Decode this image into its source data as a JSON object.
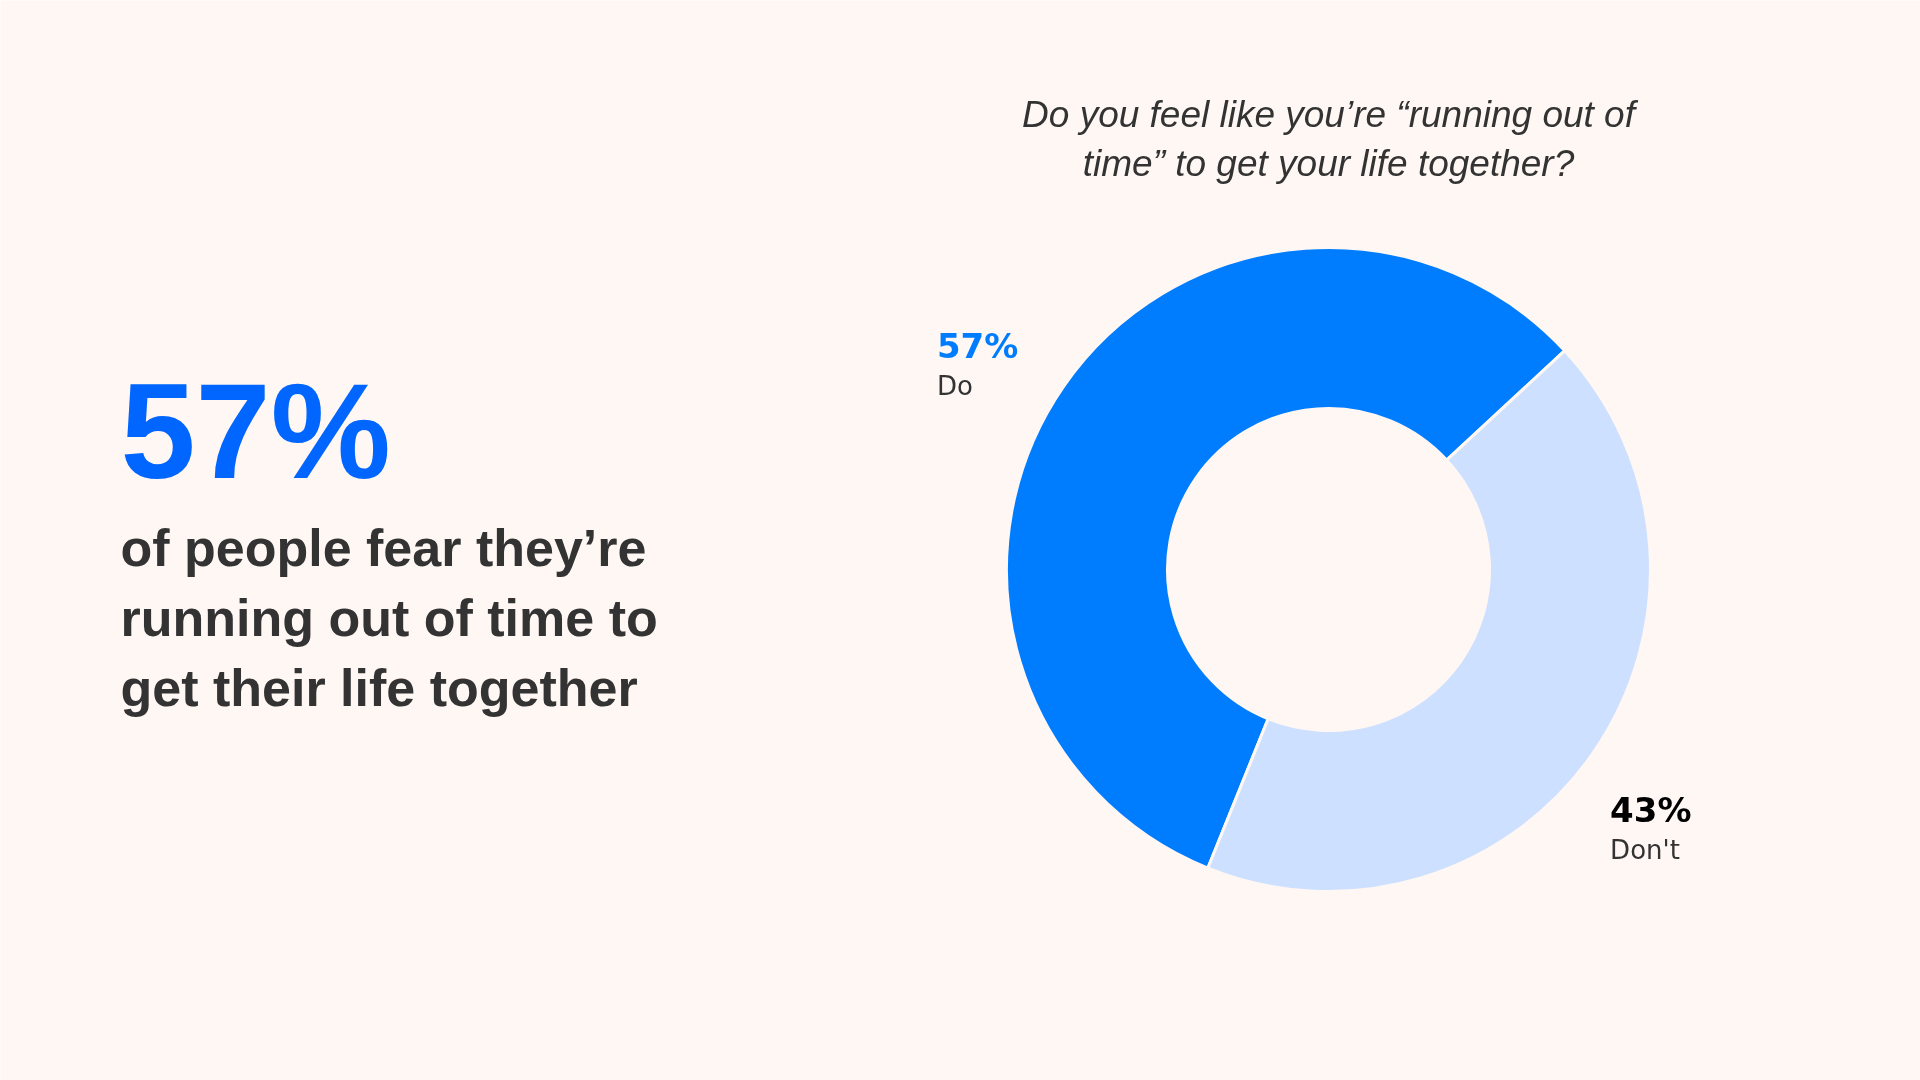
{
  "chart_data": {
    "type": "donut",
    "title": "Do you feel like you’re “running out of time” to get your life together?",
    "categories": [
      "Do",
      "Don't"
    ],
    "values": [
      57,
      43
    ],
    "colors": [
      "#007dff",
      "#cde0ff"
    ],
    "value_labels": [
      "57%",
      "43%"
    ],
    "annotations": [
      "57%",
      "of people fear they’re running out of time to get their life together"
    ]
  }
}
